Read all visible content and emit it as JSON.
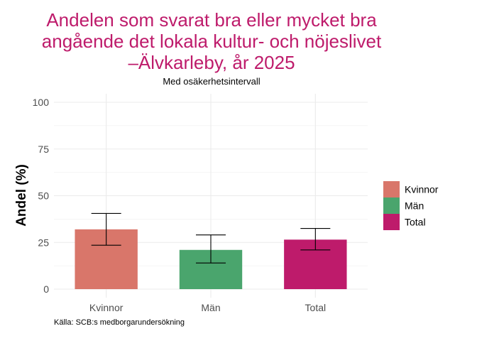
{
  "chart_data": {
    "type": "bar",
    "title_lines": [
      "Andelen som svarat bra eller mycket bra",
      "angående det lokala kultur- och nöjeslivet",
      "–Älvkarleby, år 2025"
    ],
    "subtitle": "Med osäkerhetsintervall",
    "xlabel": "",
    "ylabel": "Andel (%)",
    "categories": [
      "Kvinnor",
      "Män",
      "Total"
    ],
    "values": [
      32,
      21,
      26.5
    ],
    "error_low": [
      23.5,
      14,
      21
    ],
    "error_high": [
      40.5,
      29,
      32.5
    ],
    "colors": [
      "#d9766a",
      "#4aa56d",
      "#be1b6b"
    ],
    "title_color": "#be1b6b",
    "ylim": [
      0,
      105
    ],
    "yticks": [
      0,
      25,
      50,
      75,
      100
    ],
    "ytick_labels": [
      "0",
      "25",
      "50",
      "75",
      "100"
    ],
    "grid": true,
    "legend": {
      "position": "right",
      "entries": [
        "Kvinnor",
        "Män",
        "Total"
      ]
    },
    "caption": "Källa: SCB:s medborgarundersökning"
  }
}
